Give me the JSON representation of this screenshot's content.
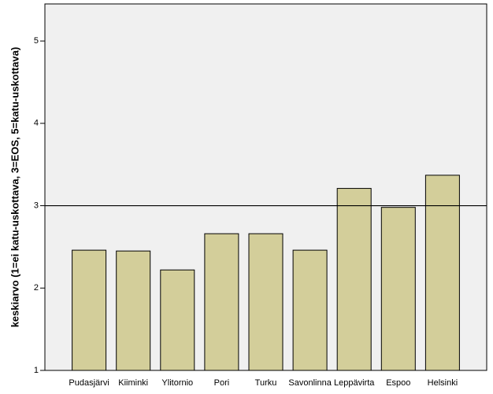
{
  "chart_data": {
    "type": "bar",
    "y_axis_label": "keskiarvo (1=ei katu-uskottava, 3=EOS, 5=katu-uskottava)",
    "categories": [
      "Pudasjärvi",
      "Kiiminki",
      "Ylitornio",
      "Pori",
      "Turku",
      "Savonlinna",
      "Leppävirta",
      "Espoo",
      "Helsinki"
    ],
    "values": [
      2.46,
      2.45,
      2.22,
      2.66,
      2.66,
      2.46,
      3.21,
      2.98,
      3.37
    ],
    "color": "#d3ce9a",
    "reference_line": 3,
    "ylim": [
      1,
      5.45
    ],
    "yticks": [
      1,
      2,
      3,
      4,
      5
    ]
  }
}
